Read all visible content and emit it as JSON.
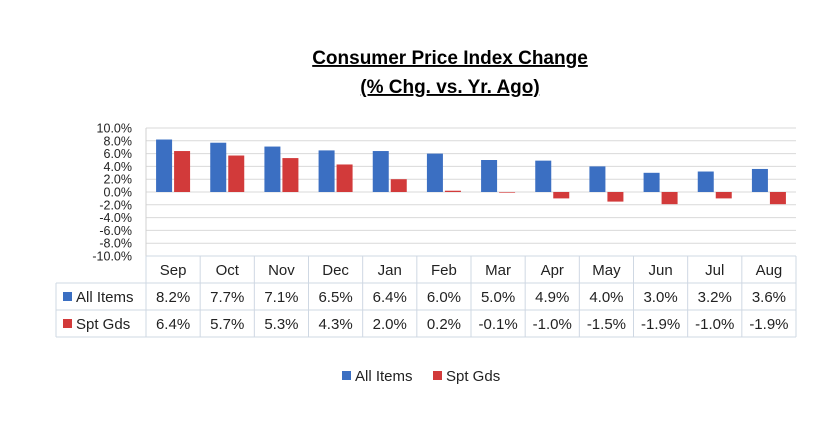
{
  "chart_data": {
    "type": "bar",
    "title": "Consumer Price Index Change",
    "subtitle": "(% Chg. vs. Yr. Ago)",
    "xlabel": "",
    "ylabel": "",
    "categories": [
      "Sep",
      "Oct",
      "Nov",
      "Dec",
      "Jan",
      "Feb",
      "Mar",
      "Apr",
      "May",
      "Jun",
      "Jul",
      "Aug"
    ],
    "ylim": [
      -10,
      10
    ],
    "yticks": [
      "10.0%",
      "8.0%",
      "6.0%",
      "4.0%",
      "2.0%",
      "0.0%",
      "-2.0%",
      "-4.0%",
      "-6.0%",
      "-8.0%",
      "-10.0%"
    ],
    "grid": true,
    "legend": "bottom",
    "data_table": true,
    "series": [
      {
        "name": "All Items",
        "color": "#3b6fc2",
        "values": [
          8.2,
          7.7,
          7.1,
          6.5,
          6.4,
          6.0,
          5.0,
          4.9,
          4.0,
          3.0,
          3.2,
          3.6
        ],
        "labels": [
          "8.2%",
          "7.7%",
          "7.1%",
          "6.5%",
          "6.4%",
          "6.0%",
          "5.0%",
          "4.9%",
          "4.0%",
          "3.0%",
          "3.2%",
          "3.6%"
        ]
      },
      {
        "name": "Spt Gds",
        "color": "#d23a3a",
        "values": [
          6.4,
          5.7,
          5.3,
          4.3,
          2.0,
          0.2,
          -0.1,
          -1.0,
          -1.5,
          -1.9,
          -1.0,
          -1.9
        ],
        "labels": [
          "6.4%",
          "5.7%",
          "5.3%",
          "4.3%",
          "2.0%",
          "0.2%",
          "-0.1%",
          "-1.0%",
          "-1.5%",
          "-1.9%",
          "-1.0%",
          "-1.9%"
        ]
      }
    ]
  }
}
